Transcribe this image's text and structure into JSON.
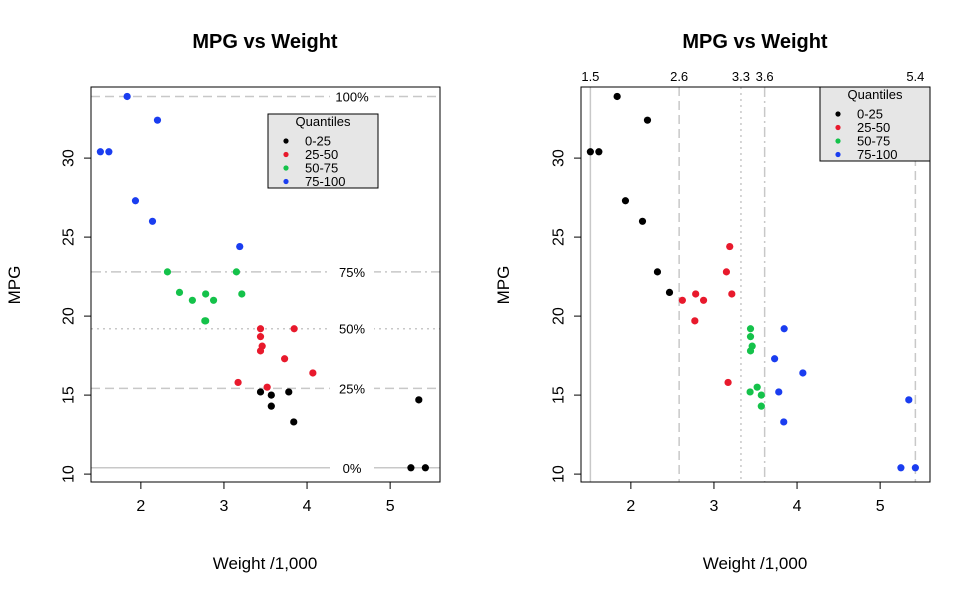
{
  "colors": {
    "c0_25": "#000000",
    "c25_50": "#e8192c",
    "c50_75": "#14c24a",
    "c75_100": "#1a3df0",
    "refline": "#c8c8c8",
    "legend_bg": "#e6e6e6"
  },
  "chart_data": [
    {
      "type": "scatter",
      "title": "MPG vs Weight",
      "xlabel": "Weight /1,000",
      "ylabel": "MPG",
      "xlim": [
        1.4,
        5.6
      ],
      "ylim": [
        9.5,
        34.5
      ],
      "x_ticks": [
        2,
        3,
        4,
        5
      ],
      "y_ticks": [
        10,
        15,
        20,
        25,
        30
      ],
      "grid": false,
      "grouping": "MPG quantile",
      "legend": {
        "title": "Quantiles",
        "position": "top-right",
        "entries": [
          {
            "label": "0-25",
            "color_key": "c0_25"
          },
          {
            "label": "25-50",
            "color_key": "c25_50"
          },
          {
            "label": "50-75",
            "color_key": "c50_75"
          },
          {
            "label": "75-100",
            "color_key": "c75_100"
          }
        ]
      },
      "reference_lines": {
        "orientation": "horizontal",
        "lines": [
          {
            "value": 33.9,
            "label": "100%",
            "style": "dashed"
          },
          {
            "value": 22.8,
            "label": "75%",
            "style": "dashdot"
          },
          {
            "value": 19.2,
            "label": "50%",
            "style": "dotted"
          },
          {
            "value": 15.425,
            "label": "25%",
            "style": "dashed"
          },
          {
            "value": 10.4,
            "label": "0%",
            "style": "solid"
          }
        ]
      },
      "series": [
        {
          "group": "0-25",
          "color_key": "c0_25",
          "x": [
            3.44,
            3.57,
            3.84,
            3.78,
            5.25,
            5.424,
            5.345,
            3.57
          ],
          "y": [
            15.2,
            14.3,
            13.3,
            15.2,
            10.4,
            10.4,
            14.7,
            15.0
          ]
        },
        {
          "group": "25-50",
          "color_key": "c25_50",
          "x": [
            3.46,
            3.44,
            3.44,
            3.44,
            3.73,
            4.07,
            3.52,
            3.17,
            3.845
          ],
          "y": [
            18.1,
            18.7,
            17.8,
            19.2,
            17.3,
            16.4,
            15.5,
            15.8,
            19.2
          ]
        },
        {
          "group": "50-75",
          "color_key": "c50_75",
          "x": [
            2.32,
            2.875,
            3.215,
            2.62,
            2.78,
            2.465,
            3.15,
            2.77,
            2.78
          ],
          "y": [
            22.8,
            21.0,
            21.4,
            21.0,
            21.4,
            21.5,
            22.8,
            19.7,
            19.7
          ]
        },
        {
          "group": "75-100",
          "color_key": "c75_100",
          "x": [
            2.2,
            1.615,
            1.835,
            1.935,
            1.513,
            2.14,
            3.19
          ],
          "y": [
            32.4,
            30.4,
            33.9,
            27.3,
            30.4,
            26.0,
            24.4
          ]
        }
      ]
    },
    {
      "type": "scatter",
      "title": "MPG vs Weight",
      "xlabel": "Weight /1,000",
      "ylabel": "MPG",
      "xlim": [
        1.4,
        5.6
      ],
      "ylim": [
        9.5,
        34.5
      ],
      "x_ticks": [
        2,
        3,
        4,
        5
      ],
      "y_ticks": [
        10,
        15,
        20,
        25,
        30
      ],
      "grid": false,
      "grouping": "Weight quantile",
      "legend": {
        "title": "Quantiles",
        "position": "top-right",
        "entries": [
          {
            "label": "0-25",
            "color_key": "c0_25"
          },
          {
            "label": "25-50",
            "color_key": "c25_50"
          },
          {
            "label": "50-75",
            "color_key": "c50_75"
          },
          {
            "label": "75-100",
            "color_key": "c75_100"
          }
        ]
      },
      "reference_lines": {
        "orientation": "vertical",
        "lines": [
          {
            "value": 1.513,
            "label": "1.5",
            "style": "solid"
          },
          {
            "value": 2.581,
            "label": "2.6",
            "style": "dashed"
          },
          {
            "value": 3.325,
            "label": "3.3",
            "style": "dotted"
          },
          {
            "value": 3.61,
            "label": "3.6",
            "style": "dashdot"
          },
          {
            "value": 5.424,
            "label": "5.4",
            "style": "dashed"
          }
        ]
      },
      "series": [
        {
          "group": "0-25",
          "color_key": "c0_25",
          "x": [
            1.835,
            2.2,
            1.513,
            1.615,
            1.935,
            2.14,
            2.32,
            2.465
          ],
          "y": [
            33.9,
            32.4,
            30.4,
            30.4,
            27.3,
            26.0,
            22.8,
            21.5
          ]
        },
        {
          "group": "25-50",
          "color_key": "c25_50",
          "x": [
            2.62,
            2.78,
            2.875,
            2.77,
            3.15,
            3.19,
            3.215,
            3.17
          ],
          "y": [
            21.0,
            21.4,
            21.0,
            19.7,
            22.8,
            24.4,
            21.4,
            15.8
          ]
        },
        {
          "group": "50-75",
          "color_key": "c50_75",
          "x": [
            3.44,
            3.44,
            3.46,
            3.44,
            3.435,
            3.52,
            3.57,
            3.57
          ],
          "y": [
            19.2,
            18.7,
            18.1,
            17.8,
            15.2,
            15.5,
            15.0,
            14.3
          ]
        },
        {
          "group": "75-100",
          "color_key": "c75_100",
          "x": [
            3.845,
            3.73,
            4.07,
            3.78,
            3.84,
            5.345,
            5.25,
            5.424
          ],
          "y": [
            19.2,
            17.3,
            16.4,
            15.2,
            13.3,
            14.7,
            10.4,
            10.4
          ]
        }
      ]
    }
  ]
}
